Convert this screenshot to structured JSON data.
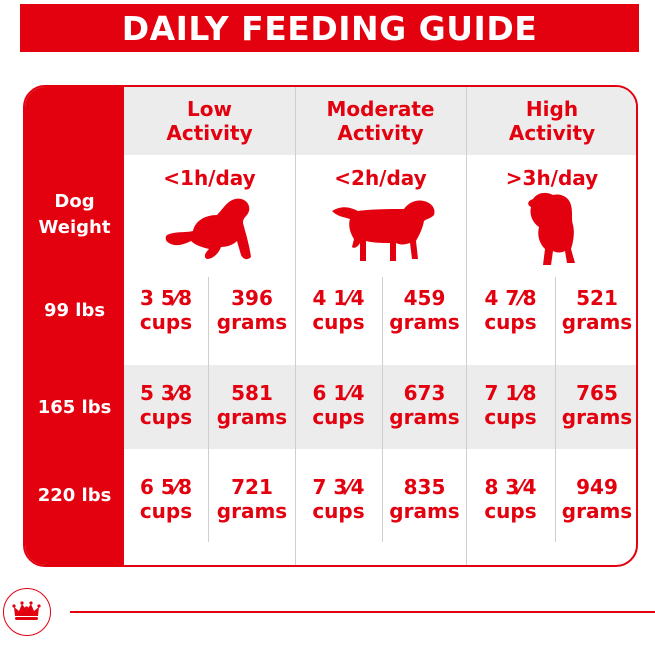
{
  "title": "DAILY FEEDING GUIDE",
  "weight_header": [
    "Dog",
    "Weight"
  ],
  "columns": [
    {
      "name_lines": [
        "Low",
        "Activity"
      ],
      "per_day": "<1h/day",
      "icon": "lying-dog-icon"
    },
    {
      "name_lines": [
        "Moderate",
        "Activity"
      ],
      "per_day": "<2h/day",
      "icon": "standing-dog-icon"
    },
    {
      "name_lines": [
        "High",
        "Activity"
      ],
      "per_day": ">3h/day",
      "icon": "running-dog-icon"
    }
  ],
  "rows": [
    {
      "weight": "99 lbs",
      "cells": [
        {
          "cups_amount": "3 5⁄8",
          "cups_unit": "cups",
          "grams_amount": "396",
          "grams_unit": "grams"
        },
        {
          "cups_amount": "4 1⁄4",
          "cups_unit": "cups",
          "grams_amount": "459",
          "grams_unit": "grams"
        },
        {
          "cups_amount": "4 7⁄8",
          "cups_unit": "cups",
          "grams_amount": "521",
          "grams_unit": "grams"
        }
      ]
    },
    {
      "weight": "165 lbs",
      "cells": [
        {
          "cups_amount": "5 3⁄8",
          "cups_unit": "cups",
          "grams_amount": "581",
          "grams_unit": "grams"
        },
        {
          "cups_amount": "6 1⁄4",
          "cups_unit": "cups",
          "grams_amount": "673",
          "grams_unit": "grams"
        },
        {
          "cups_amount": "7 1⁄8",
          "cups_unit": "cups",
          "grams_amount": "765",
          "grams_unit": "grams"
        }
      ]
    },
    {
      "weight": "220 lbs",
      "cells": [
        {
          "cups_amount": "6 5⁄8",
          "cups_unit": "cups",
          "grams_amount": "721",
          "grams_unit": "grams"
        },
        {
          "cups_amount": "7 3⁄4",
          "cups_unit": "cups",
          "grams_amount": "835",
          "grams_unit": "grams"
        },
        {
          "cups_amount": "8 3⁄4",
          "cups_unit": "cups",
          "grams_amount": "949",
          "grams_unit": "grams"
        }
      ]
    }
  ],
  "colors": {
    "brand_red": "#e3000f",
    "header_gray": "#ececec"
  },
  "logo_icon": "crown-logo-icon"
}
